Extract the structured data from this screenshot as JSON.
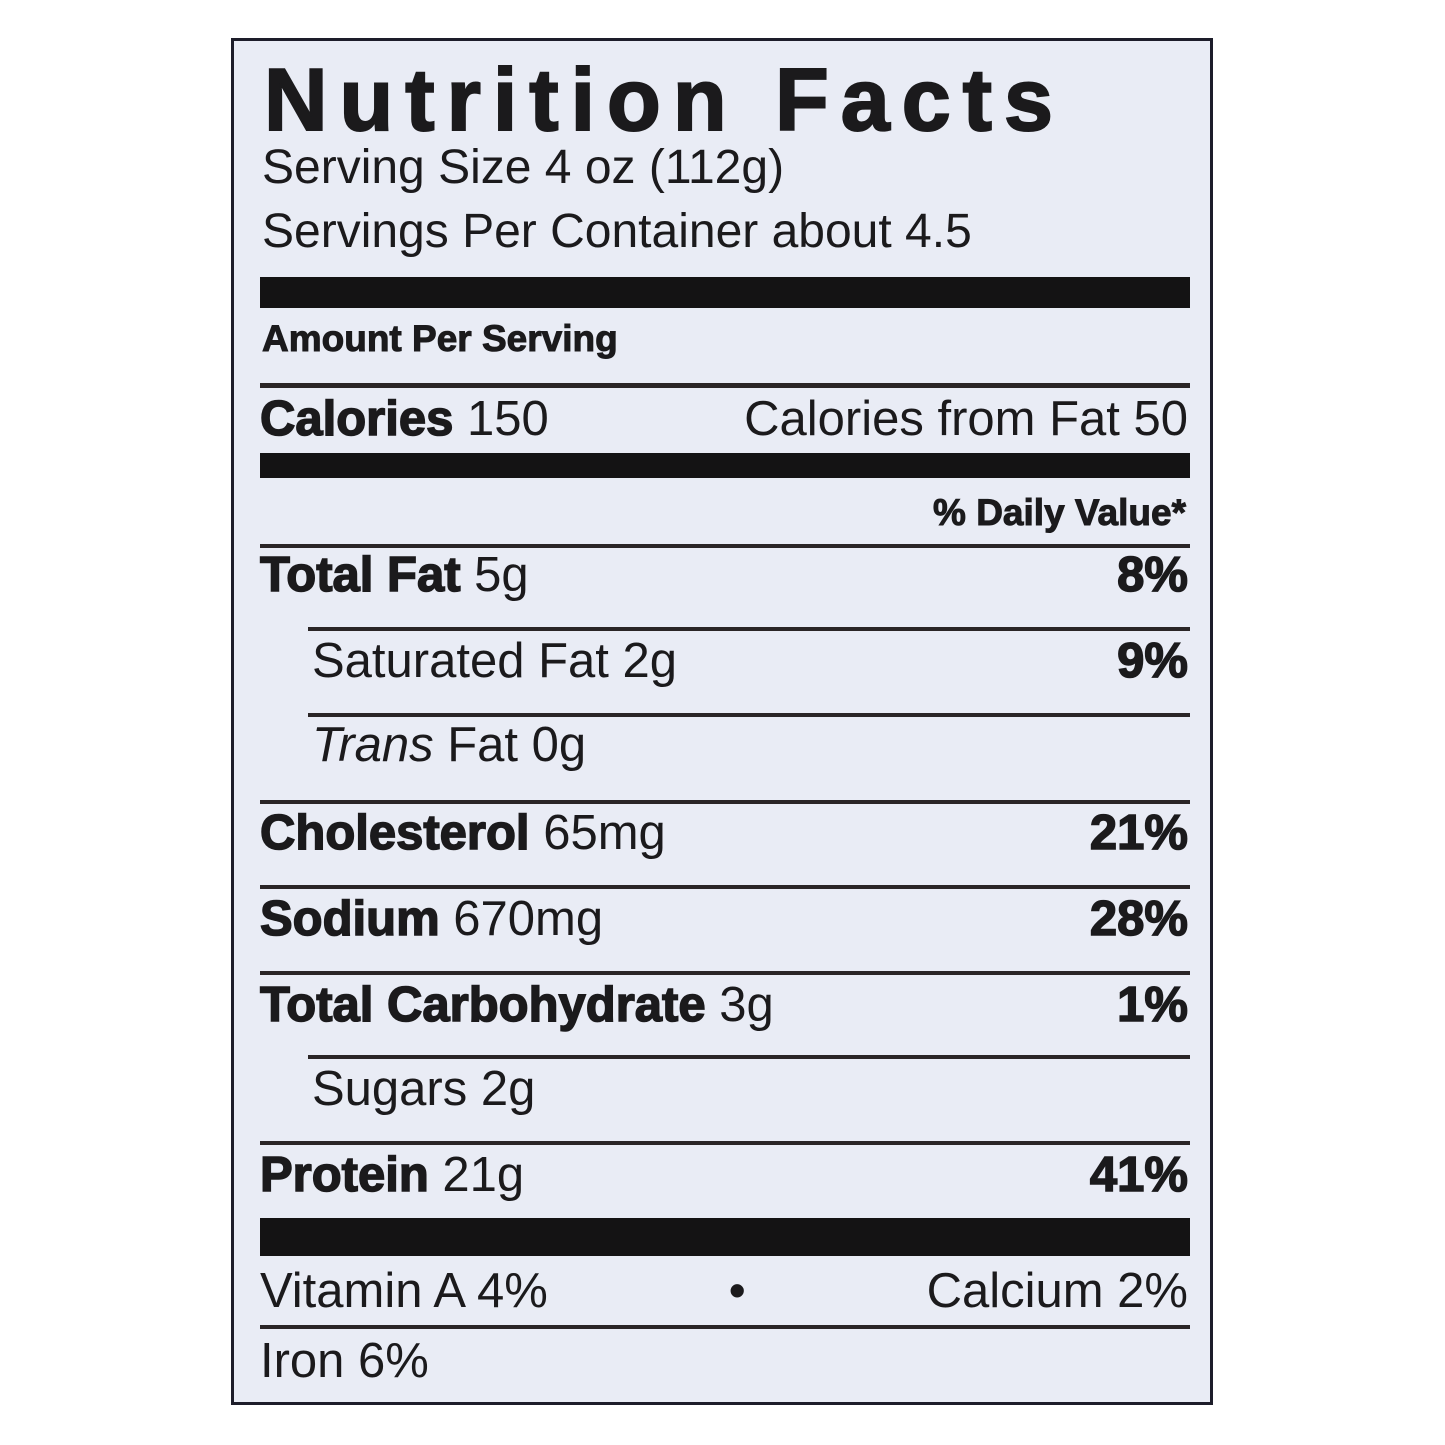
{
  "title": "Nutrition Facts",
  "serving_size": "Serving Size 4 oz (112g)",
  "servings_per_container": "Servings Per Container about 4.5",
  "amount_per_serving": "Amount Per Serving",
  "calories": {
    "label": "Calories",
    "value": "150",
    "from_fat": "Calories from Fat 50"
  },
  "daily_value_header": "% Daily Value*",
  "nutrients": [
    {
      "label": "Total Fat",
      "amount": "5g",
      "dv": "8%"
    },
    {
      "label": "Saturated Fat",
      "amount": "2g",
      "dv": "9%"
    },
    {
      "label": "Trans",
      "amount": "Fat 0g",
      "dv": ""
    },
    {
      "label": "Cholesterol",
      "amount": "65mg",
      "dv": "21%"
    },
    {
      "label": "Sodium",
      "amount": "670mg",
      "dv": "28%"
    },
    {
      "label": "Total Carbohydrate",
      "amount": "3g",
      "dv": "1%"
    },
    {
      "label": "Sugars",
      "amount": "2g",
      "dv": ""
    },
    {
      "label": "Protein",
      "amount": "21g",
      "dv": "41%"
    }
  ],
  "vitamins": {
    "vitamin_a": "Vitamin A 4%",
    "separator": "•",
    "calcium": "Calcium 2%",
    "iron": "Iron 6%"
  },
  "colors": {
    "background": "#e9ecf5",
    "ink": "#1b1a1c"
  }
}
